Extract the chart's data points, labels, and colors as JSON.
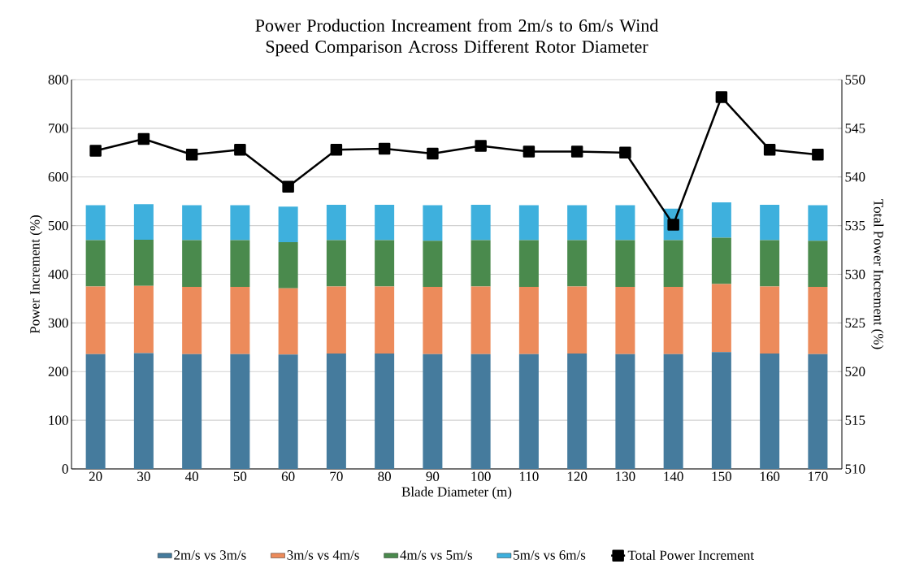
{
  "chart_data": {
    "type": "bar",
    "stacked": true,
    "title": "Power Production Increament from 2m/s to 6m/s Wind Speed Comparison Across Different Rotor Diameter",
    "xlabel": "Blade Diameter (m)",
    "ylabel": "Power Increment (%)",
    "y2label": "Total Power Increment (%)",
    "categories": [
      "20",
      "30",
      "40",
      "50",
      "60",
      "70",
      "80",
      "90",
      "100",
      "110",
      "120",
      "130",
      "140",
      "150",
      "160",
      "170"
    ],
    "series": [
      {
        "name": "2m/s vs 3m/s",
        "color": "#457b9d",
        "values": [
          236,
          238,
          236,
          236,
          235,
          237,
          237,
          236,
          236,
          236,
          237,
          236,
          236,
          240,
          237,
          236
        ]
      },
      {
        "name": "3m/s vs 4m/s",
        "color": "#ec8b5b",
        "values": [
          139,
          138,
          138,
          138,
          136,
          138,
          138,
          138,
          139,
          138,
          138,
          138,
          138,
          140,
          138,
          138
        ]
      },
      {
        "name": "4m/s vs 5m/s",
        "color": "#4a8a4d",
        "values": [
          95,
          95,
          96,
          96,
          95,
          95,
          95,
          95,
          95,
          96,
          95,
          96,
          96,
          95,
          95,
          95
        ]
      },
      {
        "name": "5m/s vs 6m/s",
        "color": "#3eb0dd",
        "values": [
          72,
          73,
          72,
          72,
          73,
          73,
          73,
          73,
          73,
          72,
          72,
          72,
          65,
          73,
          73,
          73
        ]
      },
      {
        "name": "Total Power Increment",
        "color": "#000000",
        "type": "line",
        "axis": "y2",
        "marker": "square",
        "line_style": "solid",
        "values": [
          542.7,
          543.9,
          542.3,
          542.8,
          539.0,
          542.8,
          542.9,
          542.4,
          543.2,
          542.6,
          542.6,
          542.5,
          535.1,
          548.2,
          542.8,
          542.3
        ]
      }
    ],
    "ylim": [
      0,
      800
    ],
    "yticks": [
      0,
      100,
      200,
      300,
      400,
      500,
      600,
      700,
      800
    ],
    "y2lim": [
      510,
      550
    ],
    "y2ticks": [
      510,
      515,
      520,
      525,
      530,
      535,
      540,
      545,
      550
    ],
    "grid": "y",
    "legend": "bottom"
  }
}
